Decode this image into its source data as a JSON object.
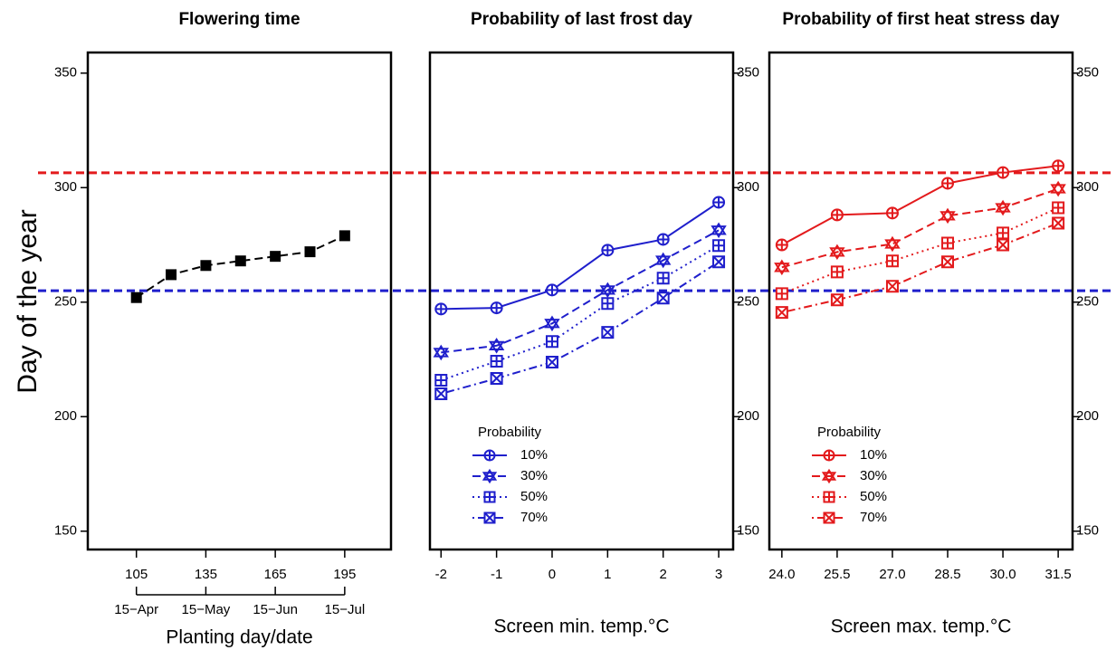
{
  "chart_data": [
    {
      "type": "line",
      "title": "Flowering time",
      "y_label": "Day of the year",
      "x_label": "Planting day/date",
      "x": [
        105,
        120,
        135,
        150,
        165,
        180,
        195
      ],
      "series": [
        {
          "color": "#000000",
          "linestyle": "dashed",
          "marker": "filled-square",
          "values": [
            252,
            262,
            266,
            268,
            270,
            272,
            279
          ]
        }
      ],
      "xlim": [
        84,
        215
      ],
      "xticks": [
        105,
        135,
        165,
        195
      ],
      "x2ticks": [
        {
          "value": 105,
          "label": "15−Apr"
        },
        {
          "value": 135,
          "label": "15−May"
        },
        {
          "value": 165,
          "label": "15−Jun"
        },
        {
          "value": 195,
          "label": "15−Jul"
        }
      ],
      "ylim": [
        142,
        359
      ],
      "yticks": [
        150,
        200,
        250,
        300,
        350
      ],
      "y_axis_side": "left",
      "reference_lines": [
        {
          "value": 306.5,
          "color": "#e31a1c"
        },
        {
          "value": 255,
          "color": "#1f1fcc"
        }
      ]
    },
    {
      "type": "line",
      "title": "Probability of last frost day",
      "x_label": "Screen min. temp.°C",
      "legend_title": "Probability",
      "x": [
        -2,
        -1,
        0,
        1,
        2,
        3
      ],
      "series": [
        {
          "name": "10%",
          "color": "#1f1fcc",
          "linestyle": "solid",
          "marker": "circle-plus",
          "values": [
            247,
            247.5,
            255.3,
            272.7,
            277.4,
            293.6
          ]
        },
        {
          "name": "30%",
          "color": "#1f1fcc",
          "linestyle": "dashed",
          "marker": "star",
          "values": [
            228,
            231,
            240.7,
            255.3,
            268.3,
            281.4
          ]
        },
        {
          "name": "50%",
          "color": "#1f1fcc",
          "linestyle": "dotted",
          "marker": "square-plus",
          "values": [
            215.9,
            224.2,
            232.8,
            249.4,
            260.5,
            274.7
          ]
        },
        {
          "name": "70%",
          "color": "#1f1fcc",
          "linestyle": "dotdash",
          "marker": "square-cross",
          "values": [
            210,
            216.7,
            223.8,
            236.8,
            251.8,
            267.6
          ]
        }
      ],
      "xlim": [
        -2.2,
        3.26
      ],
      "xticks": [
        -2,
        -1,
        0,
        1,
        2,
        3
      ],
      "ylim": [
        142,
        359
      ],
      "yticks": [
        150,
        200,
        250,
        300,
        350
      ],
      "y_axis_side": "right"
    },
    {
      "type": "line",
      "title": "Probability of first heat stress day",
      "x_label": "Screen max. temp.°C",
      "legend_title": "Probability",
      "x": [
        24,
        25.5,
        27,
        28.5,
        30,
        31.5
      ],
      "series": [
        {
          "name": "10%",
          "color": "#e31a1c",
          "linestyle": "solid",
          "marker": "circle-plus",
          "values": [
            275,
            288.1,
            288.9,
            301.9,
            306.6,
            309.5
          ]
        },
        {
          "name": "30%",
          "color": "#e31a1c",
          "linestyle": "dashed",
          "marker": "star",
          "values": [
            265.2,
            271.9,
            275.4,
            287.7,
            291.2,
            299.5
          ]
        },
        {
          "name": "50%",
          "color": "#e31a1c",
          "linestyle": "dotted",
          "marker": "square-plus",
          "values": [
            253.7,
            263.2,
            268,
            275.8,
            280.2,
            291.2
          ]
        },
        {
          "name": "70%",
          "color": "#e31a1c",
          "linestyle": "dotdash",
          "marker": "square-cross",
          "values": [
            245.5,
            251,
            256.9,
            267.6,
            275,
            284.5
          ]
        }
      ],
      "xlim": [
        23.66,
        31.89
      ],
      "xticks": [
        {
          "value": 24,
          "label": "24.0"
        },
        25.5,
        {
          "value": 27,
          "label": "27.0"
        },
        28.5,
        {
          "value": 30,
          "label": "30.0"
        },
        31.5
      ],
      "ylim": [
        142,
        359
      ],
      "yticks": [
        150,
        200,
        250,
        300,
        350
      ],
      "y_axis_side": "right"
    }
  ]
}
